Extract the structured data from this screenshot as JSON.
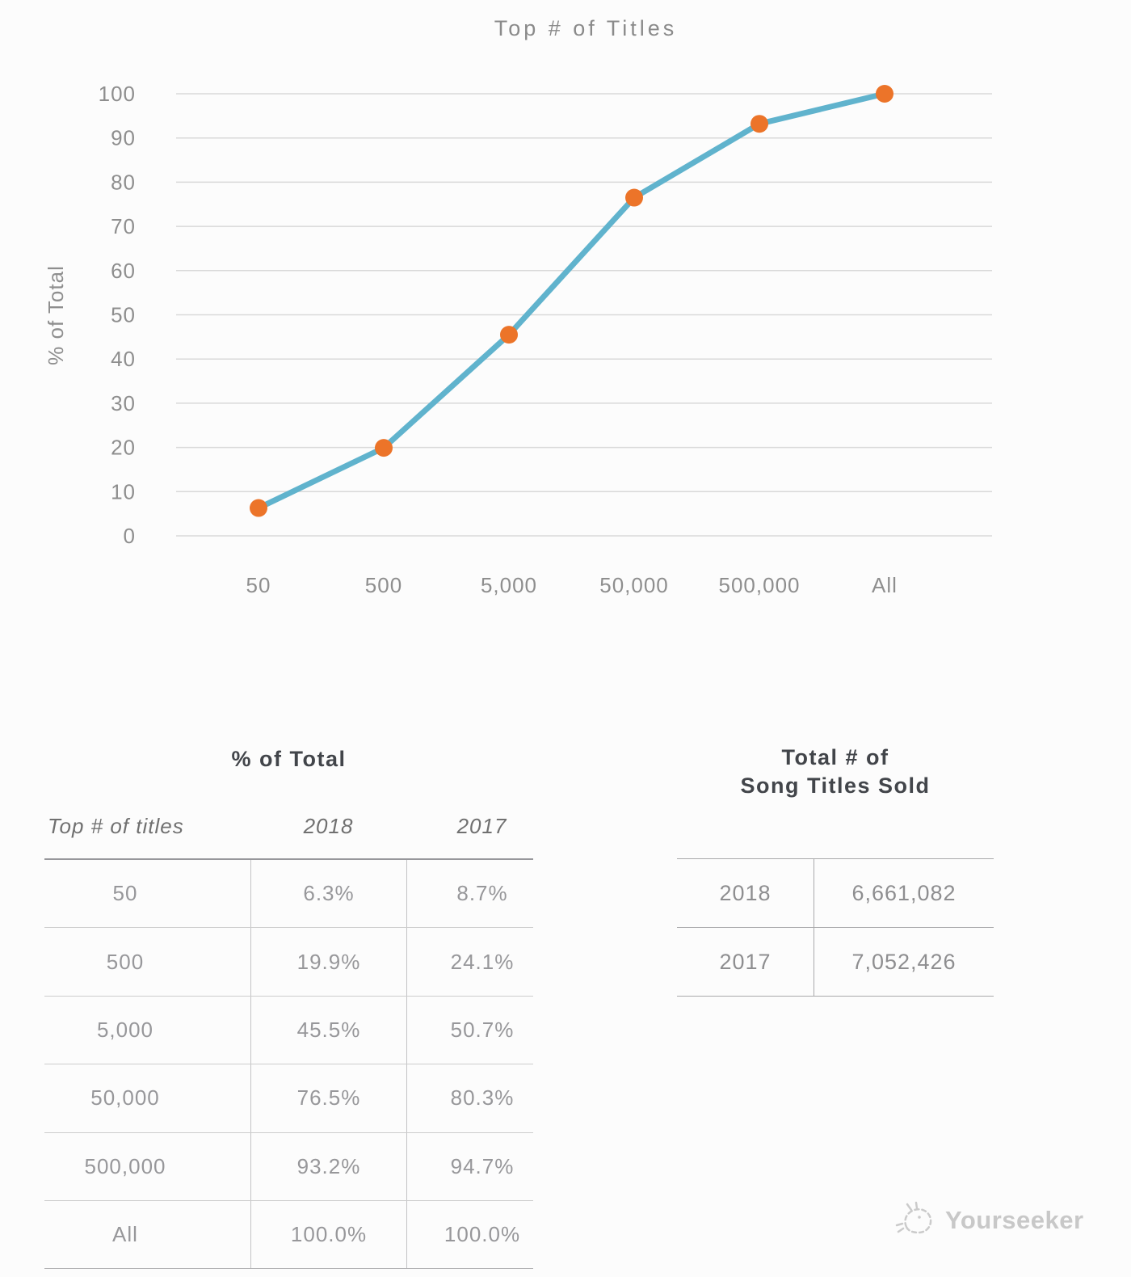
{
  "chart_data": {
    "type": "line",
    "title": "Top # of Titles",
    "xlabel": "",
    "ylabel": "% of Total",
    "categories": [
      "50",
      "500",
      "5,000",
      "50,000",
      "500,000",
      "All"
    ],
    "series": [
      {
        "name": "2018",
        "values": [
          6.3,
          19.9,
          45.5,
          76.5,
          93.2,
          100.0
        ]
      }
    ],
    "ylim": [
      0,
      100
    ],
    "yticks": [
      0,
      10,
      20,
      30,
      40,
      50,
      60,
      70,
      80,
      90,
      100
    ],
    "grid": true,
    "legend_position": "none",
    "line_color": "#60b3cd",
    "marker_color": "#ec7429"
  },
  "left_table": {
    "title": "% of Total",
    "headers": [
      "Top # of titles",
      "2018",
      "2017"
    ],
    "rows": [
      [
        "50",
        "6.3%",
        "8.7%"
      ],
      [
        "500",
        "19.9%",
        "24.1%"
      ],
      [
        "5,000",
        "45.5%",
        "50.7%"
      ],
      [
        "50,000",
        "76.5%",
        "80.3%"
      ],
      [
        "500,000",
        "93.2%",
        "94.7%"
      ],
      [
        "All",
        "100.0%",
        "100.0%"
      ]
    ]
  },
  "right_table": {
    "title_line1": "Total # of",
    "title_line2": "Song Titles Sold",
    "rows": [
      [
        "2018",
        "6,661,082"
      ],
      [
        "2017",
        "7,052,426"
      ]
    ]
  },
  "footer": {
    "brand": "Yourseeker"
  }
}
